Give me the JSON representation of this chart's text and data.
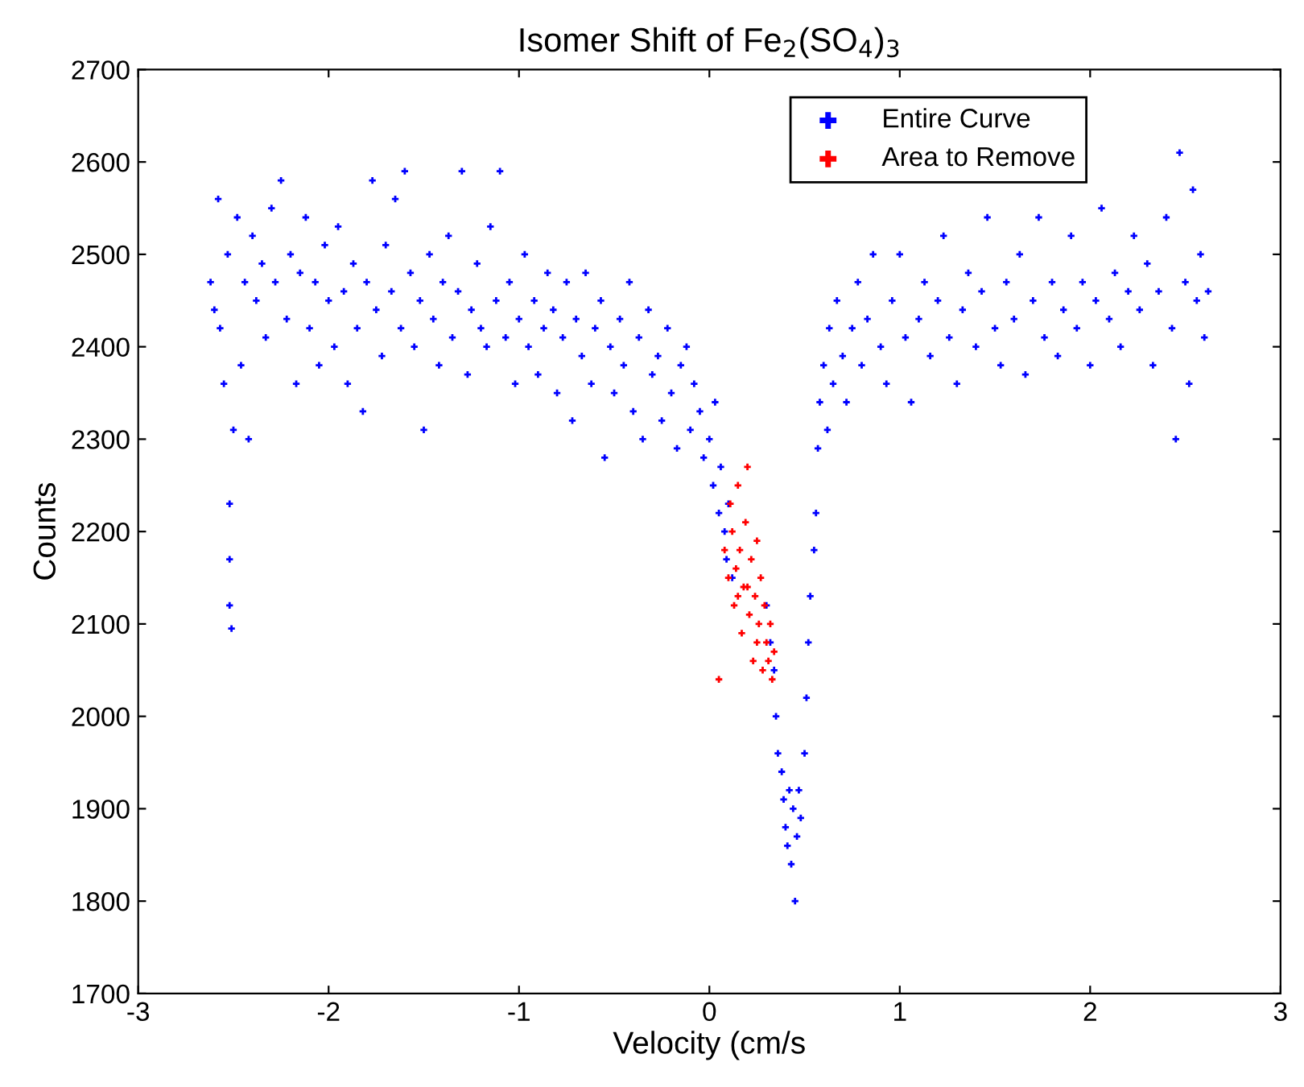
{
  "chart_data": {
    "type": "scatter",
    "title": "Isomer Shift of Fe$_{2}$(SO$_{4}$)$_{3}$",
    "xlabel": "Velocity (cm/s",
    "ylabel": "Counts",
    "xlim": [
      -3,
      3
    ],
    "ylim": [
      1700,
      2700
    ],
    "xticks": [
      -3,
      -2,
      -1,
      0,
      1,
      2,
      3
    ],
    "yticks": [
      1700,
      1800,
      1900,
      2000,
      2100,
      2200,
      2300,
      2400,
      2500,
      2600,
      2700
    ],
    "grid": false,
    "legend": "top right",
    "marker": "cross",
    "series": [
      {
        "name": "Entire Curve",
        "color": "#0000ff",
        "x": [
          -2.62,
          -2.6,
          -2.58,
          -2.57,
          -2.55,
          -2.53,
          -2.52,
          -2.52,
          -2.52,
          -2.51,
          -2.5,
          -2.48,
          -2.46,
          -2.44,
          -2.42,
          -2.4,
          -2.38,
          -2.35,
          -2.33,
          -2.3,
          -2.28,
          -2.25,
          -2.22,
          -2.2,
          -2.17,
          -2.15,
          -2.12,
          -2.1,
          -2.07,
          -2.05,
          -2.02,
          -2.0,
          -1.97,
          -1.95,
          -1.92,
          -1.9,
          -1.87,
          -1.85,
          -1.82,
          -1.8,
          -1.77,
          -1.75,
          -1.72,
          -1.7,
          -1.67,
          -1.65,
          -1.62,
          -1.6,
          -1.57,
          -1.55,
          -1.52,
          -1.5,
          -1.47,
          -1.45,
          -1.42,
          -1.4,
          -1.37,
          -1.35,
          -1.32,
          -1.3,
          -1.27,
          -1.25,
          -1.22,
          -1.2,
          -1.17,
          -1.15,
          -1.12,
          -1.1,
          -1.07,
          -1.05,
          -1.02,
          -1.0,
          -0.97,
          -0.95,
          -0.92,
          -0.9,
          -0.87,
          -0.85,
          -0.82,
          -0.8,
          -0.77,
          -0.75,
          -0.72,
          -0.7,
          -0.67,
          -0.65,
          -0.62,
          -0.6,
          -0.57,
          -0.55,
          -0.52,
          -0.5,
          -0.47,
          -0.45,
          -0.42,
          -0.4,
          -0.37,
          -0.35,
          -0.32,
          -0.3,
          -0.27,
          -0.25,
          -0.22,
          -0.2,
          -0.17,
          -0.15,
          -0.12,
          -0.1,
          -0.08,
          -0.05,
          -0.03,
          0.0,
          0.02,
          0.03,
          0.05,
          0.06,
          0.08,
          0.09,
          0.1,
          0.12,
          0.3,
          0.32,
          0.34,
          0.35,
          0.36,
          0.38,
          0.39,
          0.4,
          0.41,
          0.42,
          0.43,
          0.44,
          0.45,
          0.46,
          0.47,
          0.48,
          0.5,
          0.51,
          0.52,
          0.53,
          0.55,
          0.56,
          0.57,
          0.58,
          0.6,
          0.62,
          0.63,
          0.65,
          0.67,
          0.7,
          0.72,
          0.75,
          0.78,
          0.8,
          0.83,
          0.86,
          0.9,
          0.93,
          0.96,
          1.0,
          1.03,
          1.06,
          1.1,
          1.13,
          1.16,
          1.2,
          1.23,
          1.26,
          1.3,
          1.33,
          1.36,
          1.4,
          1.43,
          1.46,
          1.5,
          1.53,
          1.56,
          1.6,
          1.63,
          1.66,
          1.7,
          1.73,
          1.76,
          1.8,
          1.83,
          1.86,
          1.9,
          1.93,
          1.96,
          2.0,
          2.03,
          2.06,
          2.1,
          2.13,
          2.16,
          2.2,
          2.23,
          2.26,
          2.3,
          2.33,
          2.36,
          2.4,
          2.43,
          2.45,
          2.47,
          2.5,
          2.52,
          2.54,
          2.56,
          2.58,
          2.6,
          2.62
        ],
        "values": [
          2470,
          2440,
          2560,
          2420,
          2360,
          2500,
          2230,
          2170,
          2120,
          2095,
          2310,
          2540,
          2380,
          2470,
          2300,
          2520,
          2450,
          2490,
          2410,
          2550,
          2470,
          2580,
          2430,
          2500,
          2360,
          2480,
          2540,
          2420,
          2470,
          2380,
          2510,
          2450,
          2400,
          2530,
          2460,
          2360,
          2490,
          2420,
          2330,
          2470,
          2580,
          2440,
          2390,
          2510,
          2460,
          2560,
          2420,
          2590,
          2480,
          2400,
          2450,
          2310,
          2500,
          2430,
          2380,
          2470,
          2520,
          2410,
          2460,
          2590,
          2370,
          2440,
          2490,
          2420,
          2400,
          2530,
          2450,
          2590,
          2410,
          2470,
          2360,
          2430,
          2500,
          2400,
          2450,
          2370,
          2420,
          2480,
          2440,
          2350,
          2410,
          2470,
          2320,
          2430,
          2390,
          2480,
          2360,
          2420,
          2450,
          2280,
          2400,
          2350,
          2430,
          2380,
          2470,
          2330,
          2410,
          2300,
          2440,
          2370,
          2390,
          2320,
          2420,
          2350,
          2290,
          2380,
          2400,
          2310,
          2360,
          2330,
          2280,
          2300,
          2250,
          2340,
          2220,
          2270,
          2200,
          2170,
          2230,
          2150,
          2120,
          2080,
          2050,
          2000,
          1960,
          1940,
          1910,
          1880,
          1860,
          1920,
          1840,
          1900,
          1800,
          1870,
          1920,
          1890,
          1960,
          2020,
          2080,
          2130,
          2180,
          2220,
          2290,
          2340,
          2380,
          2310,
          2420,
          2360,
          2450,
          2390,
          2340,
          2420,
          2470,
          2380,
          2430,
          2500,
          2400,
          2360,
          2450,
          2500,
          2410,
          2340,
          2430,
          2470,
          2390,
          2450,
          2520,
          2410,
          2360,
          2440,
          2480,
          2400,
          2460,
          2540,
          2420,
          2380,
          2470,
          2430,
          2500,
          2370,
          2450,
          2540,
          2410,
          2470,
          2390,
          2440,
          2520,
          2420,
          2470,
          2380,
          2450,
          2550,
          2430,
          2480,
          2400,
          2460,
          2520,
          2440,
          2490,
          2380,
          2460,
          2540,
          2420,
          2300,
          2610,
          2470,
          2360,
          2570,
          2450,
          2500,
          2410,
          2460
        ]
      },
      {
        "name": "Area to Remove",
        "color": "#ff0000",
        "x": [
          0.05,
          0.08,
          0.1,
          0.11,
          0.12,
          0.13,
          0.14,
          0.15,
          0.16,
          0.17,
          0.18,
          0.19,
          0.2,
          0.21,
          0.22,
          0.23,
          0.24,
          0.25,
          0.26,
          0.27,
          0.28,
          0.29,
          0.3,
          0.31,
          0.32,
          0.33,
          0.34,
          0.15,
          0.2,
          0.25
        ],
        "values": [
          2040,
          2180,
          2150,
          2230,
          2200,
          2120,
          2160,
          2250,
          2180,
          2090,
          2140,
          2210,
          2270,
          2110,
          2170,
          2060,
          2130,
          2190,
          2100,
          2150,
          2050,
          2120,
          2080,
          2060,
          2100,
          2040,
          2070,
          2130,
          2140,
          2080
        ]
      }
    ]
  }
}
